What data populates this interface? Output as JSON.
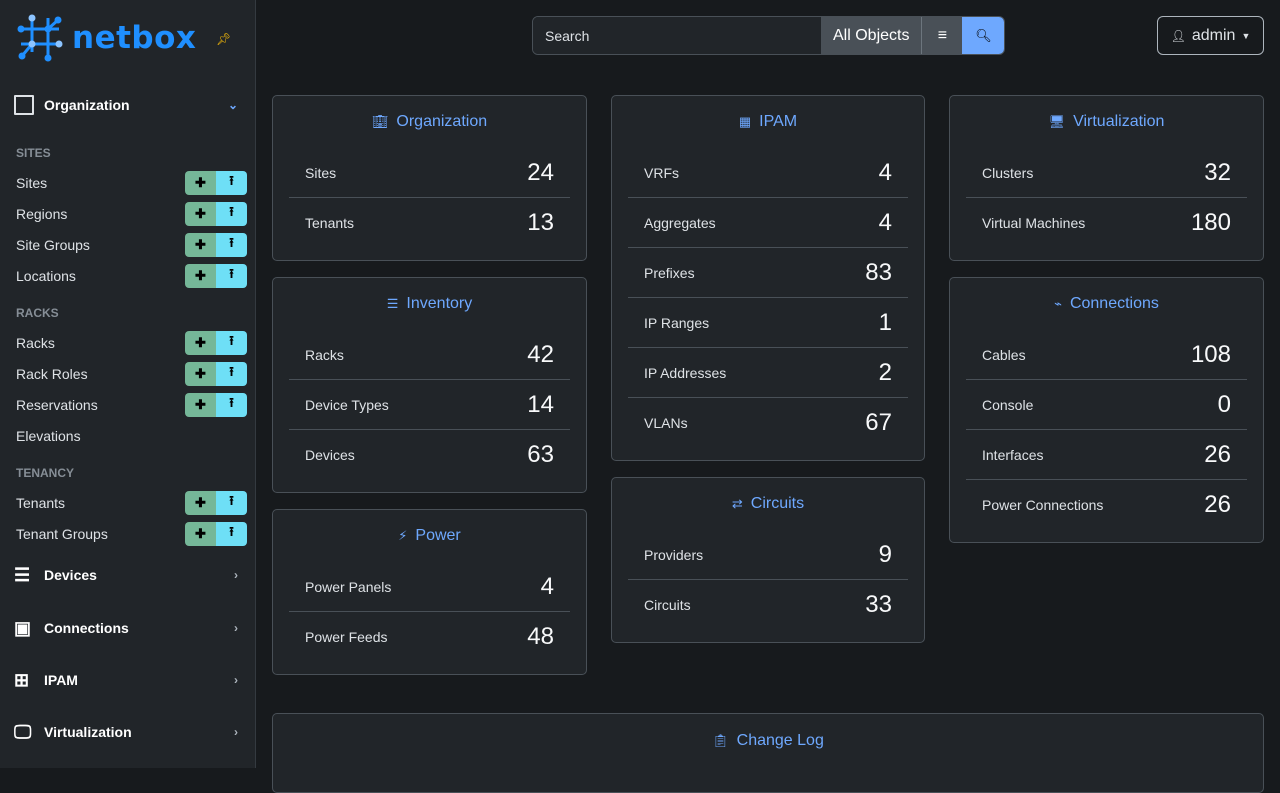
{
  "brand": {
    "name": "netbox",
    "accent": "#1f8fff"
  },
  "sidebar": {
    "organization": "Organization",
    "sections": [
      {
        "title": "SITES",
        "items": [
          {
            "label": "Sites",
            "actions": true
          },
          {
            "label": "Regions",
            "actions": true
          },
          {
            "label": "Site Groups",
            "actions": true
          },
          {
            "label": "Locations",
            "actions": true
          }
        ]
      },
      {
        "title": "RACKS",
        "items": [
          {
            "label": "Racks",
            "actions": true
          },
          {
            "label": "Rack Roles",
            "actions": true
          },
          {
            "label": "Reservations",
            "actions": true
          },
          {
            "label": "Elevations",
            "actions": false
          }
        ]
      },
      {
        "title": "TENANCY",
        "items": [
          {
            "label": "Tenants",
            "actions": true
          },
          {
            "label": "Tenant Groups",
            "actions": true
          }
        ]
      }
    ],
    "menus": [
      "Devices",
      "Connections",
      "IPAM",
      "Virtualization"
    ],
    "add_icon": "plus-icon",
    "import_icon": "upload-icon"
  },
  "search": {
    "placeholder": "Search",
    "scope": "All Objects"
  },
  "user": {
    "name": "admin"
  },
  "cards": {
    "organization": {
      "title": "Organization",
      "rows": [
        [
          "Sites",
          "24"
        ],
        [
          "Tenants",
          "13"
        ]
      ]
    },
    "inventory": {
      "title": "Inventory",
      "rows": [
        [
          "Racks",
          "42"
        ],
        [
          "Device Types",
          "14"
        ],
        [
          "Devices",
          "63"
        ]
      ]
    },
    "power": {
      "title": "Power",
      "rows": [
        [
          "Power Panels",
          "4"
        ],
        [
          "Power Feeds",
          "48"
        ]
      ]
    },
    "ipam": {
      "title": "IPAM",
      "rows": [
        [
          "VRFs",
          "4"
        ],
        [
          "Aggregates",
          "4"
        ],
        [
          "Prefixes",
          "83"
        ],
        [
          "IP Ranges",
          "1"
        ],
        [
          "IP Addresses",
          "2"
        ],
        [
          "VLANs",
          "67"
        ]
      ]
    },
    "circuits": {
      "title": "Circuits",
      "rows": [
        [
          "Providers",
          "9"
        ],
        [
          "Circuits",
          "33"
        ]
      ]
    },
    "virtualization": {
      "title": "Virtualization",
      "rows": [
        [
          "Clusters",
          "32"
        ],
        [
          "Virtual Machines",
          "180"
        ]
      ]
    },
    "connections": {
      "title": "Connections",
      "rows": [
        [
          "Cables",
          "108"
        ],
        [
          "Console",
          "0"
        ],
        [
          "Interfaces",
          "26"
        ],
        [
          "Power Connections",
          "26"
        ]
      ]
    }
  },
  "changelog": {
    "title": "Change Log"
  }
}
